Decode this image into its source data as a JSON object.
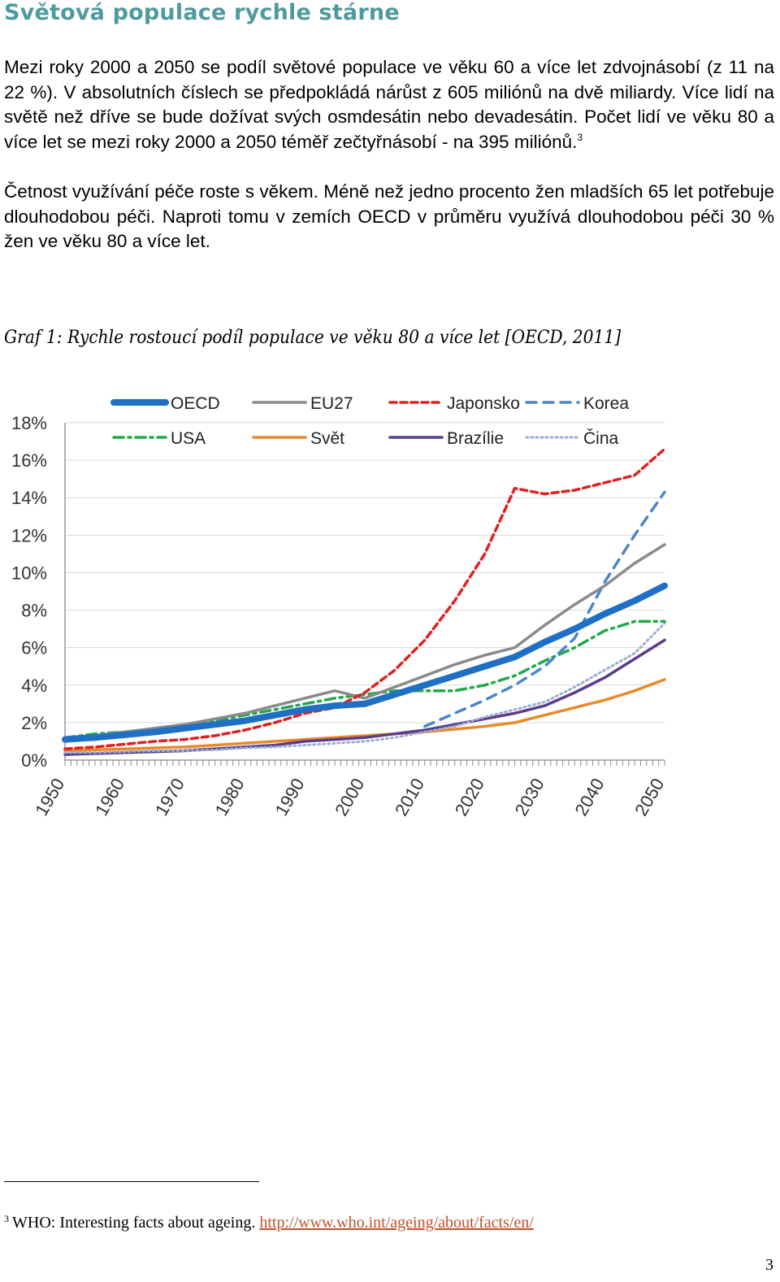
{
  "heading": "Světová populace rychle stárne",
  "paragraph1": "Mezi roky 2000 a 2050 se podíl světové populace ve věku 60 a více let zdvojnásobí (z 11 na 22 %). V absolutních číslech se předpokládá nárůst z 605 miliónů na dvě miliardy. Více lidí na světě než dříve se bude dožívat svých osmdesátin nebo devadesátin. Počet lidí ve věku 80 a více let se mezi roky 2000 a 2050 téměř zečtyřnásobí - na 395 miliónů.",
  "paragraph1_ref": "3",
  "paragraph2": "Četnost využívání péče roste s věkem. Méně než jedno procento žen mladších 65 let potřebuje dlouhodobou péči. Naproti tomu v zemích OECD v průměru využívá dlouhodobou péči 30 % žen ve věku 80 a více let.",
  "caption": "Graf 1: Rychle rostoucí podíl populace ve věku 80 a více let [OECD, 2011]",
  "chart_data": {
    "type": "line",
    "title": "",
    "xlabel": "",
    "ylabel": "",
    "xlim": [
      1950,
      2050
    ],
    "ylim": [
      0,
      18
    ],
    "y_tick_labels": [
      "0%",
      "2%",
      "4%",
      "6%",
      "8%",
      "10%",
      "12%",
      "14%",
      "16%",
      "18%"
    ],
    "x_tick_labels": [
      "1950",
      "1960",
      "1970",
      "1980",
      "1990",
      "2000",
      "2010",
      "2020",
      "2030",
      "2040",
      "2050"
    ],
    "grid": true,
    "legend_position": "top",
    "x": [
      1950,
      1955,
      1960,
      1965,
      1970,
      1975,
      1980,
      1985,
      1990,
      1995,
      2000,
      2005,
      2010,
      2015,
      2020,
      2025,
      2030,
      2035,
      2040,
      2045,
      2050
    ],
    "series": [
      {
        "name": "OECD",
        "color": "#1f6fc5",
        "style": "solid-thick",
        "values": [
          1.1,
          1.2,
          1.35,
          1.5,
          1.7,
          1.9,
          2.1,
          2.4,
          2.7,
          2.9,
          3.0,
          3.5,
          4.0,
          4.5,
          5.0,
          5.5,
          6.3,
          7.0,
          7.8,
          8.5,
          9.3
        ]
      },
      {
        "name": "EU27",
        "color": "#8a8a8a",
        "style": "solid",
        "values": [
          1.2,
          1.3,
          1.5,
          1.7,
          1.9,
          2.2,
          2.5,
          2.9,
          3.3,
          3.7,
          3.3,
          3.9,
          4.5,
          5.1,
          5.6,
          6.0,
          7.2,
          8.3,
          9.3,
          10.5,
          11.5
        ]
      },
      {
        "name": "Japonsko",
        "color": "#e02020",
        "style": "dash",
        "values": [
          0.6,
          0.7,
          0.85,
          1.0,
          1.1,
          1.3,
          1.6,
          2.0,
          2.5,
          2.8,
          3.6,
          4.8,
          6.4,
          8.5,
          11.0,
          14.5,
          14.2,
          14.4,
          14.8,
          15.2,
          16.6
        ]
      },
      {
        "name": "Korea",
        "color": "#4a86c8",
        "style": "dash-long",
        "values": [
          null,
          null,
          null,
          null,
          null,
          null,
          null,
          null,
          null,
          null,
          null,
          null,
          1.8,
          2.5,
          3.2,
          4.0,
          5.0,
          6.5,
          9.5,
          12.0,
          14.3
        ]
      },
      {
        "name": "USA",
        "color": "#21a84a",
        "style": "dash-dot",
        "values": [
          1.2,
          1.4,
          1.5,
          1.7,
          1.9,
          2.1,
          2.4,
          2.7,
          3.0,
          3.3,
          3.5,
          3.7,
          3.7,
          3.7,
          4.0,
          4.5,
          5.3,
          6.0,
          6.9,
          7.4,
          7.4
        ]
      },
      {
        "name": "Svět",
        "color": "#e88a2a",
        "style": "solid",
        "values": [
          0.5,
          0.55,
          0.6,
          0.65,
          0.7,
          0.8,
          0.9,
          1.0,
          1.1,
          1.2,
          1.3,
          1.4,
          1.5,
          1.65,
          1.8,
          2.0,
          2.4,
          2.8,
          3.2,
          3.7,
          4.3
        ]
      },
      {
        "name": "Brazílie",
        "color": "#5a3d8a",
        "style": "solid",
        "values": [
          0.3,
          0.35,
          0.4,
          0.45,
          0.5,
          0.6,
          0.7,
          0.8,
          1.0,
          1.1,
          1.2,
          1.4,
          1.6,
          1.9,
          2.2,
          2.5,
          2.9,
          3.6,
          4.4,
          5.4,
          6.4
        ]
      },
      {
        "name": "Čina",
        "color": "#9aaed0",
        "style": "dot",
        "values": [
          0.4,
          0.4,
          0.45,
          0.5,
          0.5,
          0.55,
          0.65,
          0.7,
          0.8,
          0.9,
          1.0,
          1.2,
          1.5,
          1.8,
          2.3,
          2.7,
          3.1,
          3.9,
          4.8,
          5.7,
          7.3
        ]
      }
    ]
  },
  "footnote": {
    "number": "3",
    "text": "WHO: Interesting facts about ageing.",
    "link": "http://www.who.int/ageing/about/facts/en/"
  },
  "page_number": "3"
}
